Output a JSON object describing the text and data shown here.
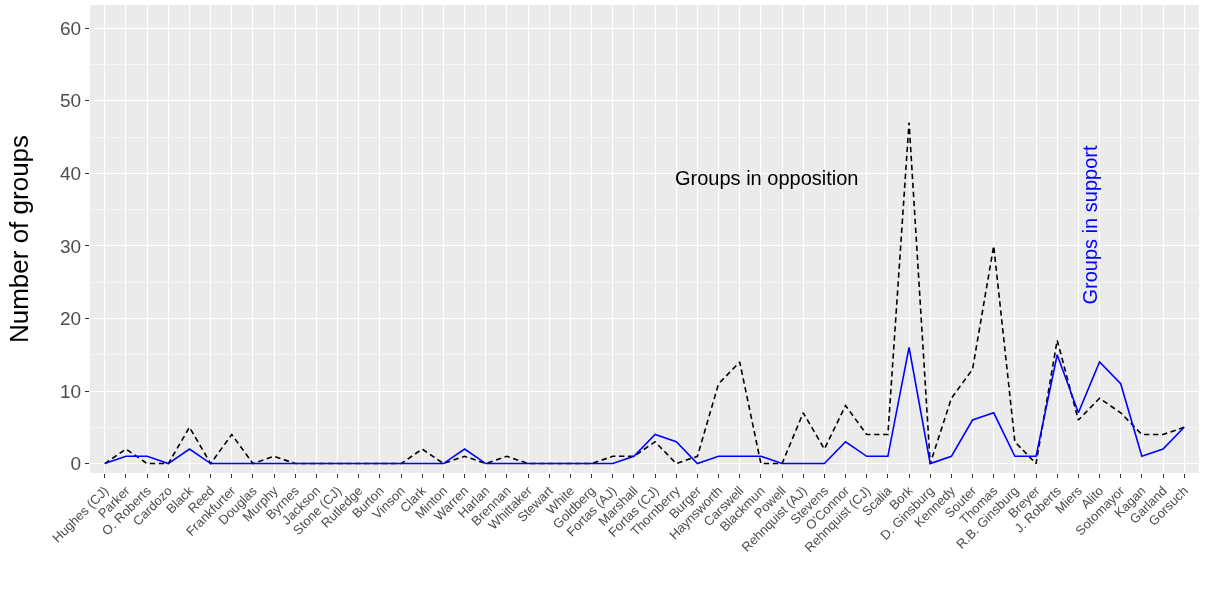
{
  "chart_data": {
    "type": "line",
    "ylabel": "Number of groups",
    "categories": [
      "Hughes (CJ)",
      "Parker",
      "O. Roberts",
      "Cardozo",
      "Black",
      "Reed",
      "Frankfurter",
      "Douglas",
      "Murphy",
      "Byrnes",
      "Jackson",
      "Stone (CJ)",
      "Rutledge",
      "Burton",
      "Vinson",
      "Clark",
      "Minton",
      "Warren",
      "Harlan",
      "Brennan",
      "Whittaker",
      "Stewart",
      "White",
      "Goldberg",
      "Fortas (AJ)",
      "Marshall",
      "Fortas (CJ)",
      "Thornberry",
      "Burger",
      "Haynsworth",
      "Carswell",
      "Blackmun",
      "Powell",
      "Rehnquist (AJ)",
      "Stevens",
      "O'Connor",
      "Rehnquist (CJ)",
      "Scalia",
      "Bork",
      "D. Ginsburg",
      "Kennedy",
      "Souter",
      "Thomas",
      "R.B. Ginsburg",
      "Breyer",
      "J. Roberts",
      "Miers",
      "Alito",
      "Sotomayor",
      "Kagan",
      "Garland",
      "Gorsuch"
    ],
    "series": [
      {
        "color": "#000000",
        "line_style": "dashed",
        "values": [
          0,
          2,
          0,
          0,
          5,
          0,
          4,
          0,
          1,
          0,
          0,
          0,
          0,
          0,
          0,
          2,
          0,
          1,
          0,
          1,
          0,
          0,
          0,
          0,
          1,
          1,
          3,
          0,
          1,
          11,
          14,
          0,
          0,
          7,
          2,
          8,
          4,
          4,
          47,
          0,
          9,
          13,
          30,
          3,
          0,
          17,
          6,
          9,
          7,
          4,
          4,
          5
        ]
      },
      {
        "color": "#0000ff",
        "line_style": "solid",
        "values": [
          0,
          1,
          1,
          0,
          2,
          0,
          0,
          0,
          0,
          0,
          0,
          0,
          0,
          0,
          0,
          0,
          0,
          2,
          0,
          0,
          0,
          0,
          0,
          0,
          0,
          1,
          4,
          3,
          0,
          1,
          1,
          1,
          0,
          0,
          0,
          3,
          1,
          1,
          16,
          0,
          1,
          6,
          7,
          1,
          1,
          15,
          7,
          14,
          11,
          1,
          2,
          5
        ]
      }
    ],
    "annotations": [
      "Groups in opposition",
      "Groups in support"
    ],
    "ylim": [
      -1.3,
      63.2
    ],
    "yticks": [
      0,
      10,
      20,
      30,
      40,
      50,
      60
    ],
    "grid": true,
    "marker": "none"
  }
}
